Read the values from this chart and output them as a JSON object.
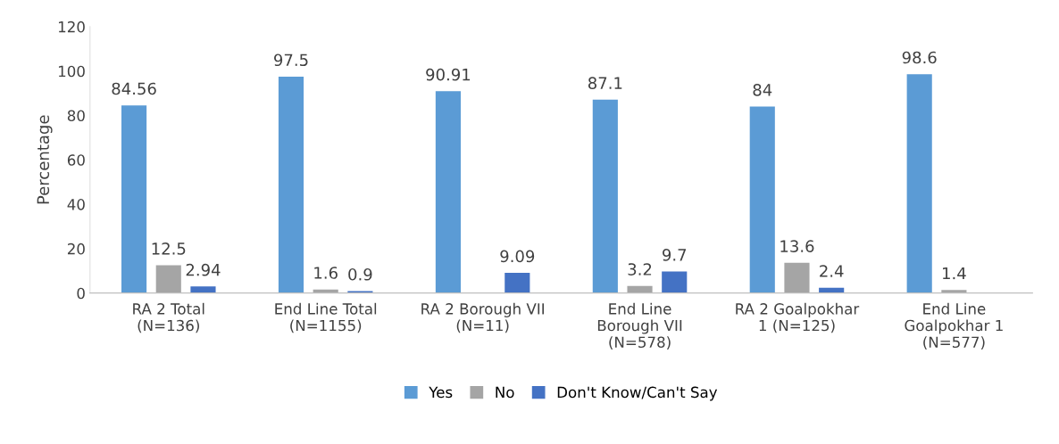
{
  "chart_data": {
    "type": "bar",
    "ylabel": "Percentage",
    "categories": [
      "RA 2 Total\n(N=136)",
      "End Line Total\n(N=1155)",
      "RA 2 Borough VII\n(N=11)",
      "End Line\nBorough VII\n(N=578)",
      "RA 2 Goalpokhar\n1 (N=125)",
      "End Line\nGoalpokhar 1\n(N=577)"
    ],
    "series": [
      {
        "name": "Yes",
        "color": "#5b9bd5",
        "values": [
          84.56,
          97.5,
          90.91,
          87.1,
          84,
          98.6
        ]
      },
      {
        "name": "No",
        "color": "#a5a5a5",
        "values": [
          12.5,
          1.6,
          null,
          3.2,
          13.6,
          1.4
        ]
      },
      {
        "name": "Don't Know/Can't Say",
        "color": "#4472c4",
        "values": [
          2.94,
          0.9,
          9.09,
          9.7,
          2.4,
          null
        ]
      }
    ],
    "ylim": [
      0,
      120
    ],
    "yticks": [
      0,
      20,
      40,
      60,
      80,
      100,
      120
    ],
    "grid": false,
    "data_labels": true,
    "legend": "bottom"
  }
}
